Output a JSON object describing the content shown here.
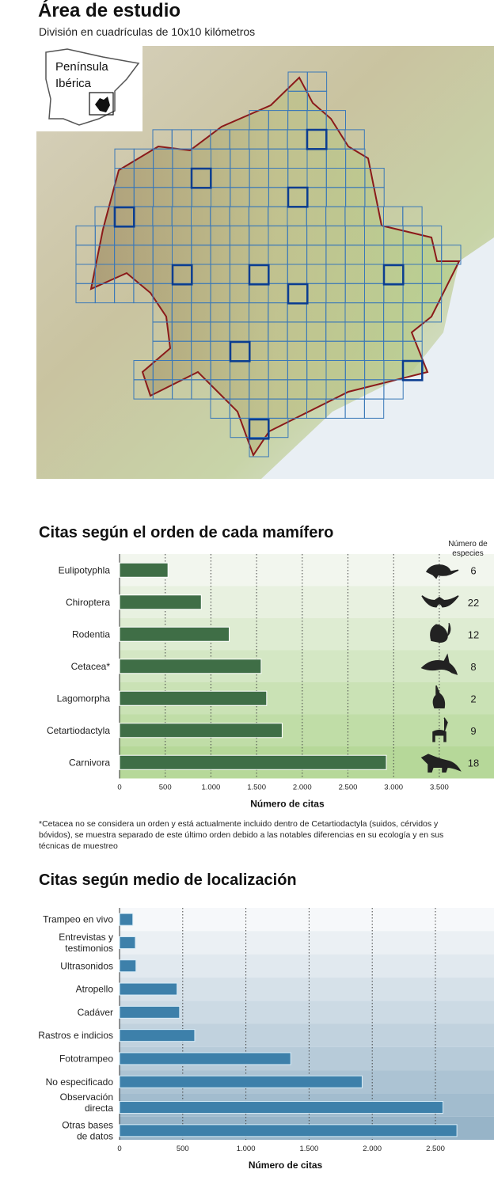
{
  "map": {
    "title": "Área de estudio",
    "subtitle": "División en cuadrículas de 10x10 kilómetros",
    "inset_label_line1": "Península",
    "inset_label_line2": "Ibérica",
    "colors": {
      "grid": "#3a78b8",
      "highlight": "#0b3d91",
      "boundary": "#8b1a1a"
    }
  },
  "chart_data": [
    {
      "type": "bar",
      "orientation": "horizontal",
      "title": "Citas según el orden de cada mamífero",
      "xlabel": "Número de citas",
      "ylabel": "",
      "xlim": [
        0,
        4100
      ],
      "xticks": [
        0,
        500,
        1000,
        1500,
        2000,
        2500,
        3000,
        3500
      ],
      "xtick_labels": [
        "0",
        "500",
        "1.000",
        "1.500",
        "2.000",
        "2.500",
        "3.000",
        "3.500"
      ],
      "grid": "vertical dotted",
      "bar_color": "#3f6e46",
      "categories": [
        "Eulipotyphla",
        "Chiroptera",
        "Rodentia",
        "Cetacea*",
        "Lagomorpha",
        "Cetartiodactyla",
        "Carnivora"
      ],
      "values": [
        530,
        895,
        1200,
        1550,
        1610,
        1780,
        2920
      ],
      "side_header_line1": "Número de",
      "side_header_line2": "especies",
      "species_counts": [
        "6",
        "22",
        "12",
        "8",
        "2",
        "9",
        "18"
      ],
      "icons": [
        "shrew-icon",
        "bat-icon",
        "rodent-icon",
        "dolphin-icon",
        "rabbit-icon",
        "deer-icon",
        "fox-icon"
      ],
      "footnote": "*Cetacea no se considera un orden y está actualmente incluido dentro de Cetartiodactyla (suidos, cérvidos y bóvidos), se muestra separado de este último orden debido a las notables diferencias en su ecología y en sus técnicas de muestreo"
    },
    {
      "type": "bar",
      "orientation": "horizontal",
      "title": "Citas según medio de localización",
      "xlabel": "Número de citas",
      "ylabel": "",
      "xlim": [
        0,
        3000
      ],
      "xticks": [
        0,
        500,
        1000,
        1500,
        2000,
        2500
      ],
      "xtick_labels": [
        "0",
        "500",
        "1.000",
        "1.500",
        "2.000",
        "2.500"
      ],
      "grid": "vertical dotted",
      "bar_color": "#3d80aa",
      "categories": [
        "Trampeo en vivo",
        "Entrevistas y testimonios",
        "Ultrasonidos",
        "Atropello",
        "Cadáver",
        "Rastros e indicios",
        "Fototrampeo",
        "No especificado",
        "Observación directa",
        "Otras bases de datos"
      ],
      "category_lines": [
        [
          "Trampeo en vivo"
        ],
        [
          "Entrevistas y",
          "testimonios"
        ],
        [
          "Ultrasonidos"
        ],
        [
          "Atropello"
        ],
        [
          "Cadáver"
        ],
        [
          "Rastros e indicios"
        ],
        [
          "Fototrampeo"
        ],
        [
          "No especificado"
        ],
        [
          "Observación",
          "directa"
        ],
        [
          "Otras bases",
          "de datos"
        ]
      ],
      "values": [
        105,
        125,
        130,
        455,
        475,
        595,
        1355,
        1920,
        2560,
        2670
      ]
    }
  ]
}
